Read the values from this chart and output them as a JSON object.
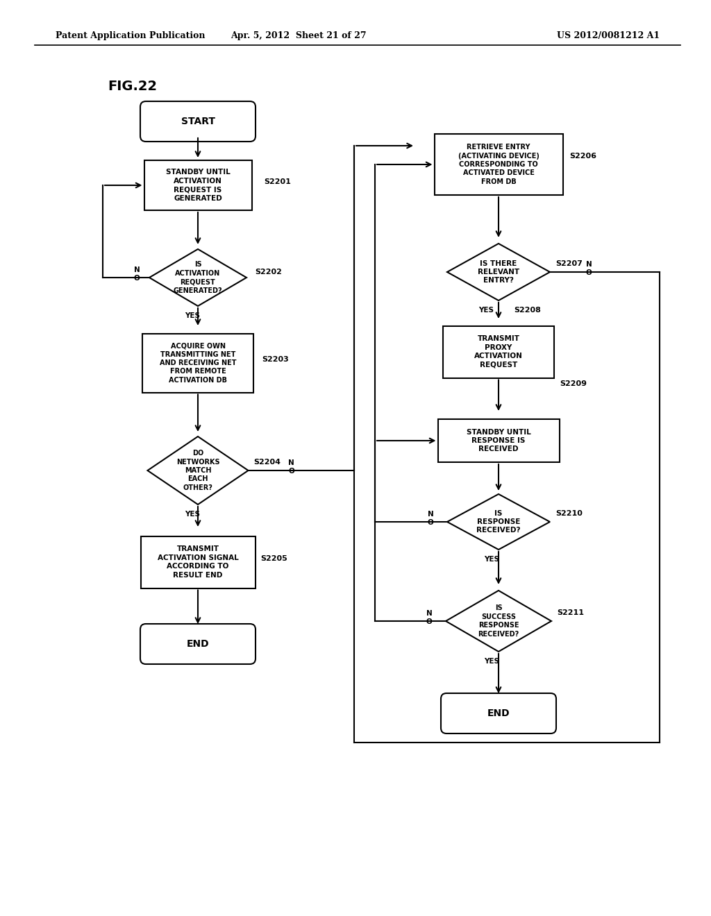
{
  "title_header_left": "Patent Application Publication",
  "title_header_center": "Apr. 5, 2012  Sheet 21 of 27",
  "title_header_right": "US 2012/0081212 A1",
  "fig_label": "FIG.22",
  "bg_color": "#ffffff",
  "line_color": "#000000",
  "text_color": "#000000"
}
